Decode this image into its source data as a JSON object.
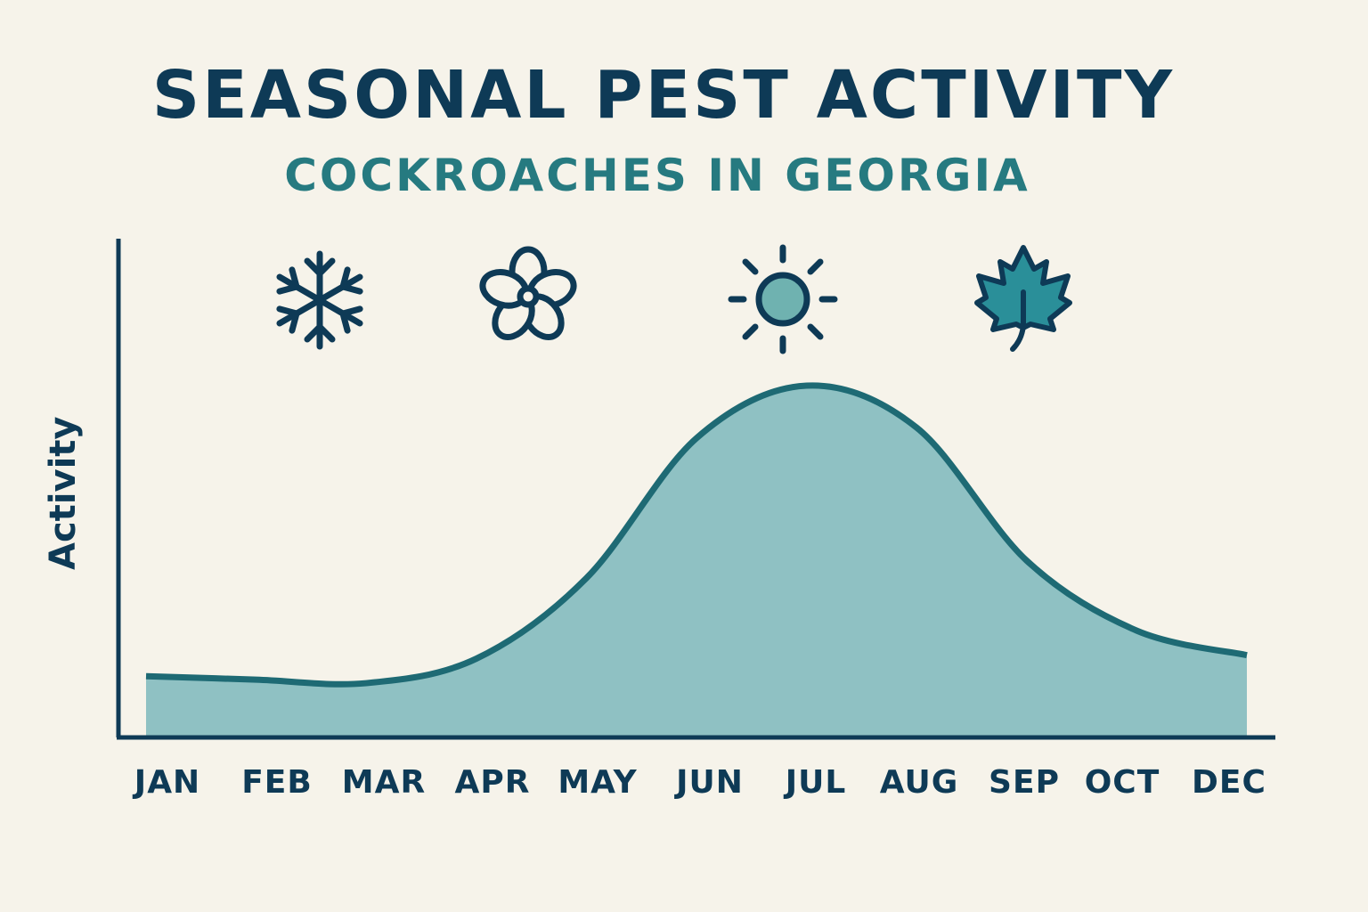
{
  "header": {
    "title": "SEASONAL PEST ACTIVITY",
    "subtitle": "COCKROACHES IN GEORGIA"
  },
  "colors": {
    "background": "#f6f3ea",
    "title": "#0e3a56",
    "subtitle": "#267a80",
    "axis": "#0e3a56",
    "area_fill": "#8fc1c3",
    "area_line": "#1e6a74",
    "leaf_fill": "#2a8f99",
    "sun_fill": "#6fb2b0"
  },
  "season_icons": [
    {
      "name": "snowflake-icon",
      "season": "Winter"
    },
    {
      "name": "flower-icon",
      "season": "Spring"
    },
    {
      "name": "sun-icon",
      "season": "Summer"
    },
    {
      "name": "maple-leaf-icon",
      "season": "Fall"
    }
  ],
  "chart_data": {
    "type": "area",
    "title": "SEASONAL PEST ACTIVITY",
    "subtitle": "COCKROACHES IN GEORGIA",
    "xlabel": "",
    "ylabel": "Activity",
    "categories": [
      "JAN",
      "FEB",
      "MAR",
      "APR",
      "MAY",
      "JUN",
      "JUL",
      "AUG",
      "SEP",
      "OCT",
      "DEC"
    ],
    "values": [
      17,
      16,
      15,
      22,
      45,
      85,
      100,
      88,
      50,
      30,
      23
    ],
    "ylim": [
      0,
      100
    ],
    "y_ticks_shown": false,
    "grid": false,
    "legend": "none",
    "annotations": [
      "snowflake icon (winter) above JAN–FEB",
      "flower icon (spring) above MAR–APR",
      "sun icon (summer) above JUN–JUL",
      "maple leaf icon (fall) above SEP"
    ]
  }
}
